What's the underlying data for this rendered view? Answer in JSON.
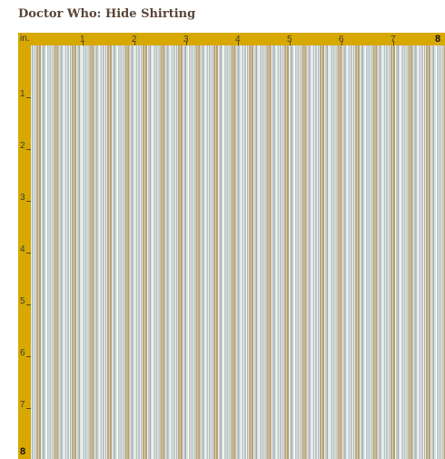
{
  "page": {
    "title": "Doctor Who: Hide Shirting"
  },
  "ruler": {
    "unit_label": "in.",
    "top_labels": [
      "1",
      "2",
      "3",
      "4",
      "5",
      "6",
      "7",
      "8"
    ],
    "left_labels": [
      "1",
      "2",
      "3",
      "4",
      "5",
      "6",
      "7",
      "8"
    ],
    "color": "#d7a800"
  },
  "fabric": {
    "pattern": "vertical pinstripes",
    "colors": [
      "#e8ece9",
      "#b9c4c6",
      "#bbaa83",
      "#b59f76",
      "#ffffff"
    ]
  }
}
